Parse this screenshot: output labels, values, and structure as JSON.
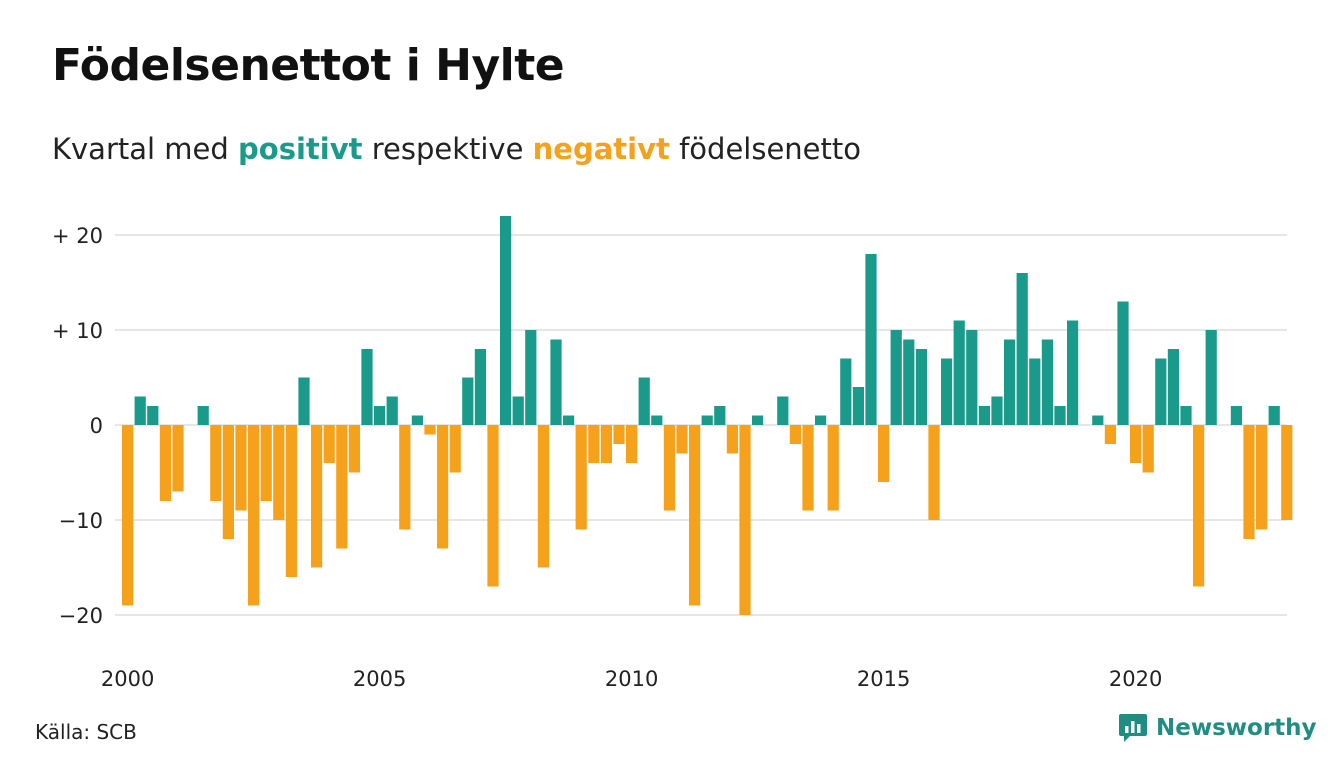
{
  "header": {
    "title": "Födelsenettot i Hylte",
    "subtitle_start": "Kvartal med ",
    "subtitle_positive": "positivt",
    "subtitle_middle": " respektive ",
    "subtitle_negative": "negativt",
    "subtitle_end": " födelsenetto"
  },
  "footer": {
    "source": "Källa: SCB",
    "brand": "Newsworthy",
    "brand_icon": "bar-chart-logo-icon"
  },
  "colors": {
    "positive": "#1a9a8a",
    "negative": "#f5a11c",
    "grid": "#dddddd",
    "brand": "#1f8d82"
  },
  "chart_data": {
    "type": "bar",
    "x_unit": "quarter",
    "x_start": "2000 Q1",
    "ylim": [
      -20,
      22
    ],
    "yticks": [
      20,
      10,
      0,
      -10,
      -20
    ],
    "ytick_labels": [
      "+ 20",
      "+ 10",
      "0",
      "−10",
      "−20"
    ],
    "xticks": [
      2000,
      2005,
      2010,
      2015,
      2020
    ],
    "xtick_labels": [
      "2000",
      "2005",
      "2010",
      "2015",
      "2020"
    ],
    "grid": true,
    "values": [
      -19,
      3,
      2,
      -8,
      -7,
      0,
      2,
      -8,
      -12,
      -9,
      -19,
      -8,
      -10,
      -16,
      5,
      -15,
      -4,
      -13,
      -5,
      8,
      2,
      3,
      -11,
      1,
      -1,
      -13,
      -5,
      5,
      8,
      -17,
      22,
      3,
      10,
      -15,
      9,
      1,
      -11,
      -4,
      -4,
      -2,
      -4,
      5,
      1,
      -9,
      -3,
      -19,
      1,
      2,
      -3,
      -20,
      1,
      0,
      3,
      -2,
      -9,
      1,
      -9,
      7,
      4,
      18,
      -6,
      10,
      9,
      8,
      -10,
      7,
      11,
      10,
      2,
      3,
      9,
      16,
      7,
      9,
      2,
      11,
      0,
      1,
      -2,
      13,
      -4,
      -5,
      7,
      8,
      2,
      -17,
      10,
      0,
      2,
      -12,
      -11,
      2,
      -10
    ]
  }
}
